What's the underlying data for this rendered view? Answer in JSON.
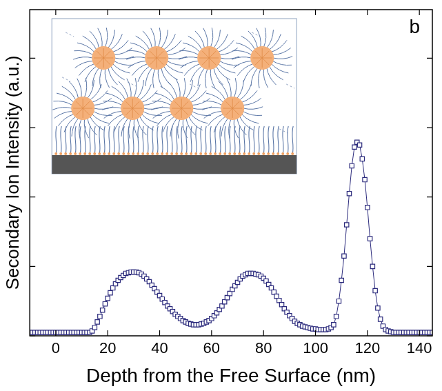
{
  "chart_data": {
    "type": "scatter",
    "panel": "b",
    "x_label": "Depth from the Free Surface (nm)",
    "y_label": "Secondary Ion Intensity (a.u.)",
    "x": [
      -10,
      -9,
      -8,
      -7,
      -6,
      -5,
      -4,
      -3,
      -2,
      -1,
      0,
      1,
      2,
      3,
      4,
      5,
      6,
      7,
      8,
      9,
      10,
      11,
      12,
      13,
      14,
      15,
      16,
      17,
      18,
      19,
      20,
      21,
      22,
      23,
      24,
      25,
      26,
      27,
      28,
      29,
      30,
      31,
      32,
      33,
      34,
      35,
      36,
      37,
      38,
      39,
      40,
      41,
      42,
      43,
      44,
      45,
      46,
      47,
      48,
      49,
      50,
      51,
      52,
      53,
      54,
      55,
      56,
      57,
      58,
      59,
      60,
      61,
      62,
      63,
      64,
      65,
      66,
      67,
      68,
      69,
      70,
      71,
      72,
      73,
      74,
      75,
      76,
      77,
      78,
      79,
      80,
      81,
      82,
      83,
      84,
      85,
      86,
      87,
      88,
      89,
      90,
      91,
      92,
      93,
      94,
      95,
      96,
      97,
      98,
      99,
      100,
      101,
      102,
      103,
      104,
      105,
      106,
      107,
      108,
      109,
      110,
      111,
      112,
      113,
      114,
      115,
      116,
      117,
      118,
      119,
      120,
      121,
      122,
      123,
      124,
      125,
      126,
      127,
      128,
      129,
      130,
      131,
      132,
      133,
      134,
      135,
      136,
      137,
      138,
      139,
      140,
      141,
      142,
      143,
      144,
      145
    ],
    "values": [
      0.05,
      0.05,
      0.05,
      0.05,
      0.05,
      0.05,
      0.05,
      0.05,
      0.05,
      0.05,
      0.05,
      0.05,
      0.05,
      0.05,
      0.05,
      0.05,
      0.05,
      0.05,
      0.05,
      0.05,
      0.05,
      0.05,
      0.05,
      0.05,
      0.07,
      0.12,
      0.2,
      0.28,
      0.37,
      0.46,
      0.54,
      0.62,
      0.69,
      0.75,
      0.8,
      0.84,
      0.87,
      0.9,
      0.91,
      0.92,
      0.92,
      0.92,
      0.91,
      0.89,
      0.86,
      0.82,
      0.78,
      0.73,
      0.68,
      0.63,
      0.58,
      0.53,
      0.48,
      0.43,
      0.39,
      0.35,
      0.31,
      0.28,
      0.25,
      0.22,
      0.2,
      0.18,
      0.17,
      0.16,
      0.16,
      0.16,
      0.17,
      0.18,
      0.2,
      0.22,
      0.25,
      0.29,
      0.33,
      0.38,
      0.43,
      0.49,
      0.55,
      0.61,
      0.67,
      0.72,
      0.77,
      0.82,
      0.86,
      0.88,
      0.9,
      0.9,
      0.9,
      0.89,
      0.88,
      0.86,
      0.83,
      0.79,
      0.74,
      0.69,
      0.63,
      0.57,
      0.51,
      0.45,
      0.39,
      0.34,
      0.29,
      0.25,
      0.21,
      0.18,
      0.16,
      0.14,
      0.13,
      0.12,
      0.11,
      0.1,
      0.1,
      0.09,
      0.09,
      0.09,
      0.09,
      0.1,
      0.12,
      0.16,
      0.28,
      0.5,
      0.8,
      1.15,
      1.6,
      2.05,
      2.45,
      2.72,
      2.79,
      2.75,
      2.55,
      2.25,
      1.85,
      1.4,
      1.0,
      0.65,
      0.4,
      0.24,
      0.14,
      0.09,
      0.07,
      0.06,
      0.05,
      0.05,
      0.05,
      0.05,
      0.05,
      0.05,
      0.05,
      0.05,
      0.05,
      0.05,
      0.05,
      0.05,
      0.05,
      0.05,
      0.05,
      0.05
    ],
    "color": "#2b2a7c",
    "marker": "square",
    "line_style": "solid",
    "xlim": [
      -10,
      145
    ],
    "xticks": [
      0,
      20,
      40,
      60,
      80,
      100,
      120,
      140
    ],
    "ylim": [
      0,
      4.7
    ],
    "yticks": [
      0,
      1,
      2,
      3,
      4
    ],
    "tick_labels": "x",
    "grid": false
  }
}
